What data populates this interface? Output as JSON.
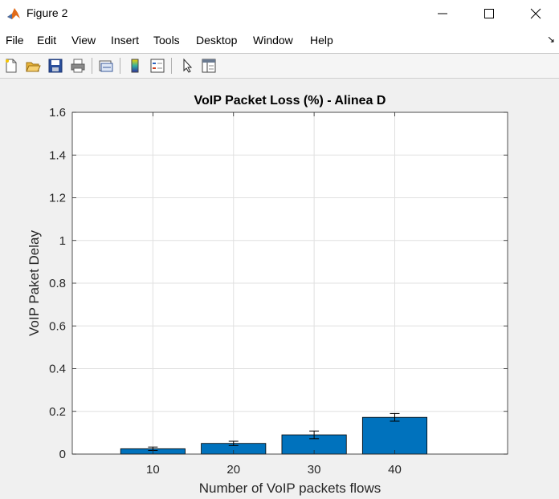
{
  "window": {
    "title": "Figure 2",
    "minimize_icon": "minimize-icon",
    "maximize_icon": "maximize-icon",
    "close_icon": "close-icon"
  },
  "menu": [
    "File",
    "Edit",
    "View",
    "Insert",
    "Tools",
    "Desktop",
    "Window",
    "Help"
  ],
  "toolbar": [
    "new-figure-icon",
    "open-file-icon",
    "save-icon",
    "print-icon",
    "link-plot-icon",
    "insert-colorbar-icon",
    "insert-legend-icon",
    "edit-plot-cursor-icon",
    "property-inspector-icon"
  ],
  "colors": {
    "bar": "#0072bd",
    "axes_bg": "#ffffff",
    "figure_bg": "#f0f0f0"
  },
  "chart_data": {
    "type": "bar",
    "title": "VoIP Packet Loss (%) - Alinea D",
    "xlabel": "Number of VoIP packets flows",
    "ylabel": "VoIP Paket Delay",
    "categories": [
      "10",
      "20",
      "30",
      "40"
    ],
    "x": [
      10,
      20,
      30,
      40
    ],
    "values": [
      0.025,
      0.05,
      0.09,
      0.172
    ],
    "error": [
      0.008,
      0.01,
      0.018,
      0.018
    ],
    "xlim": [
      0,
      54
    ],
    "ylim": [
      0,
      1.6
    ],
    "yticks": [
      "0",
      "0.2",
      "0.4",
      "0.6",
      "0.8",
      "1",
      "1.2",
      "1.4",
      "1.6"
    ],
    "grid": true
  }
}
